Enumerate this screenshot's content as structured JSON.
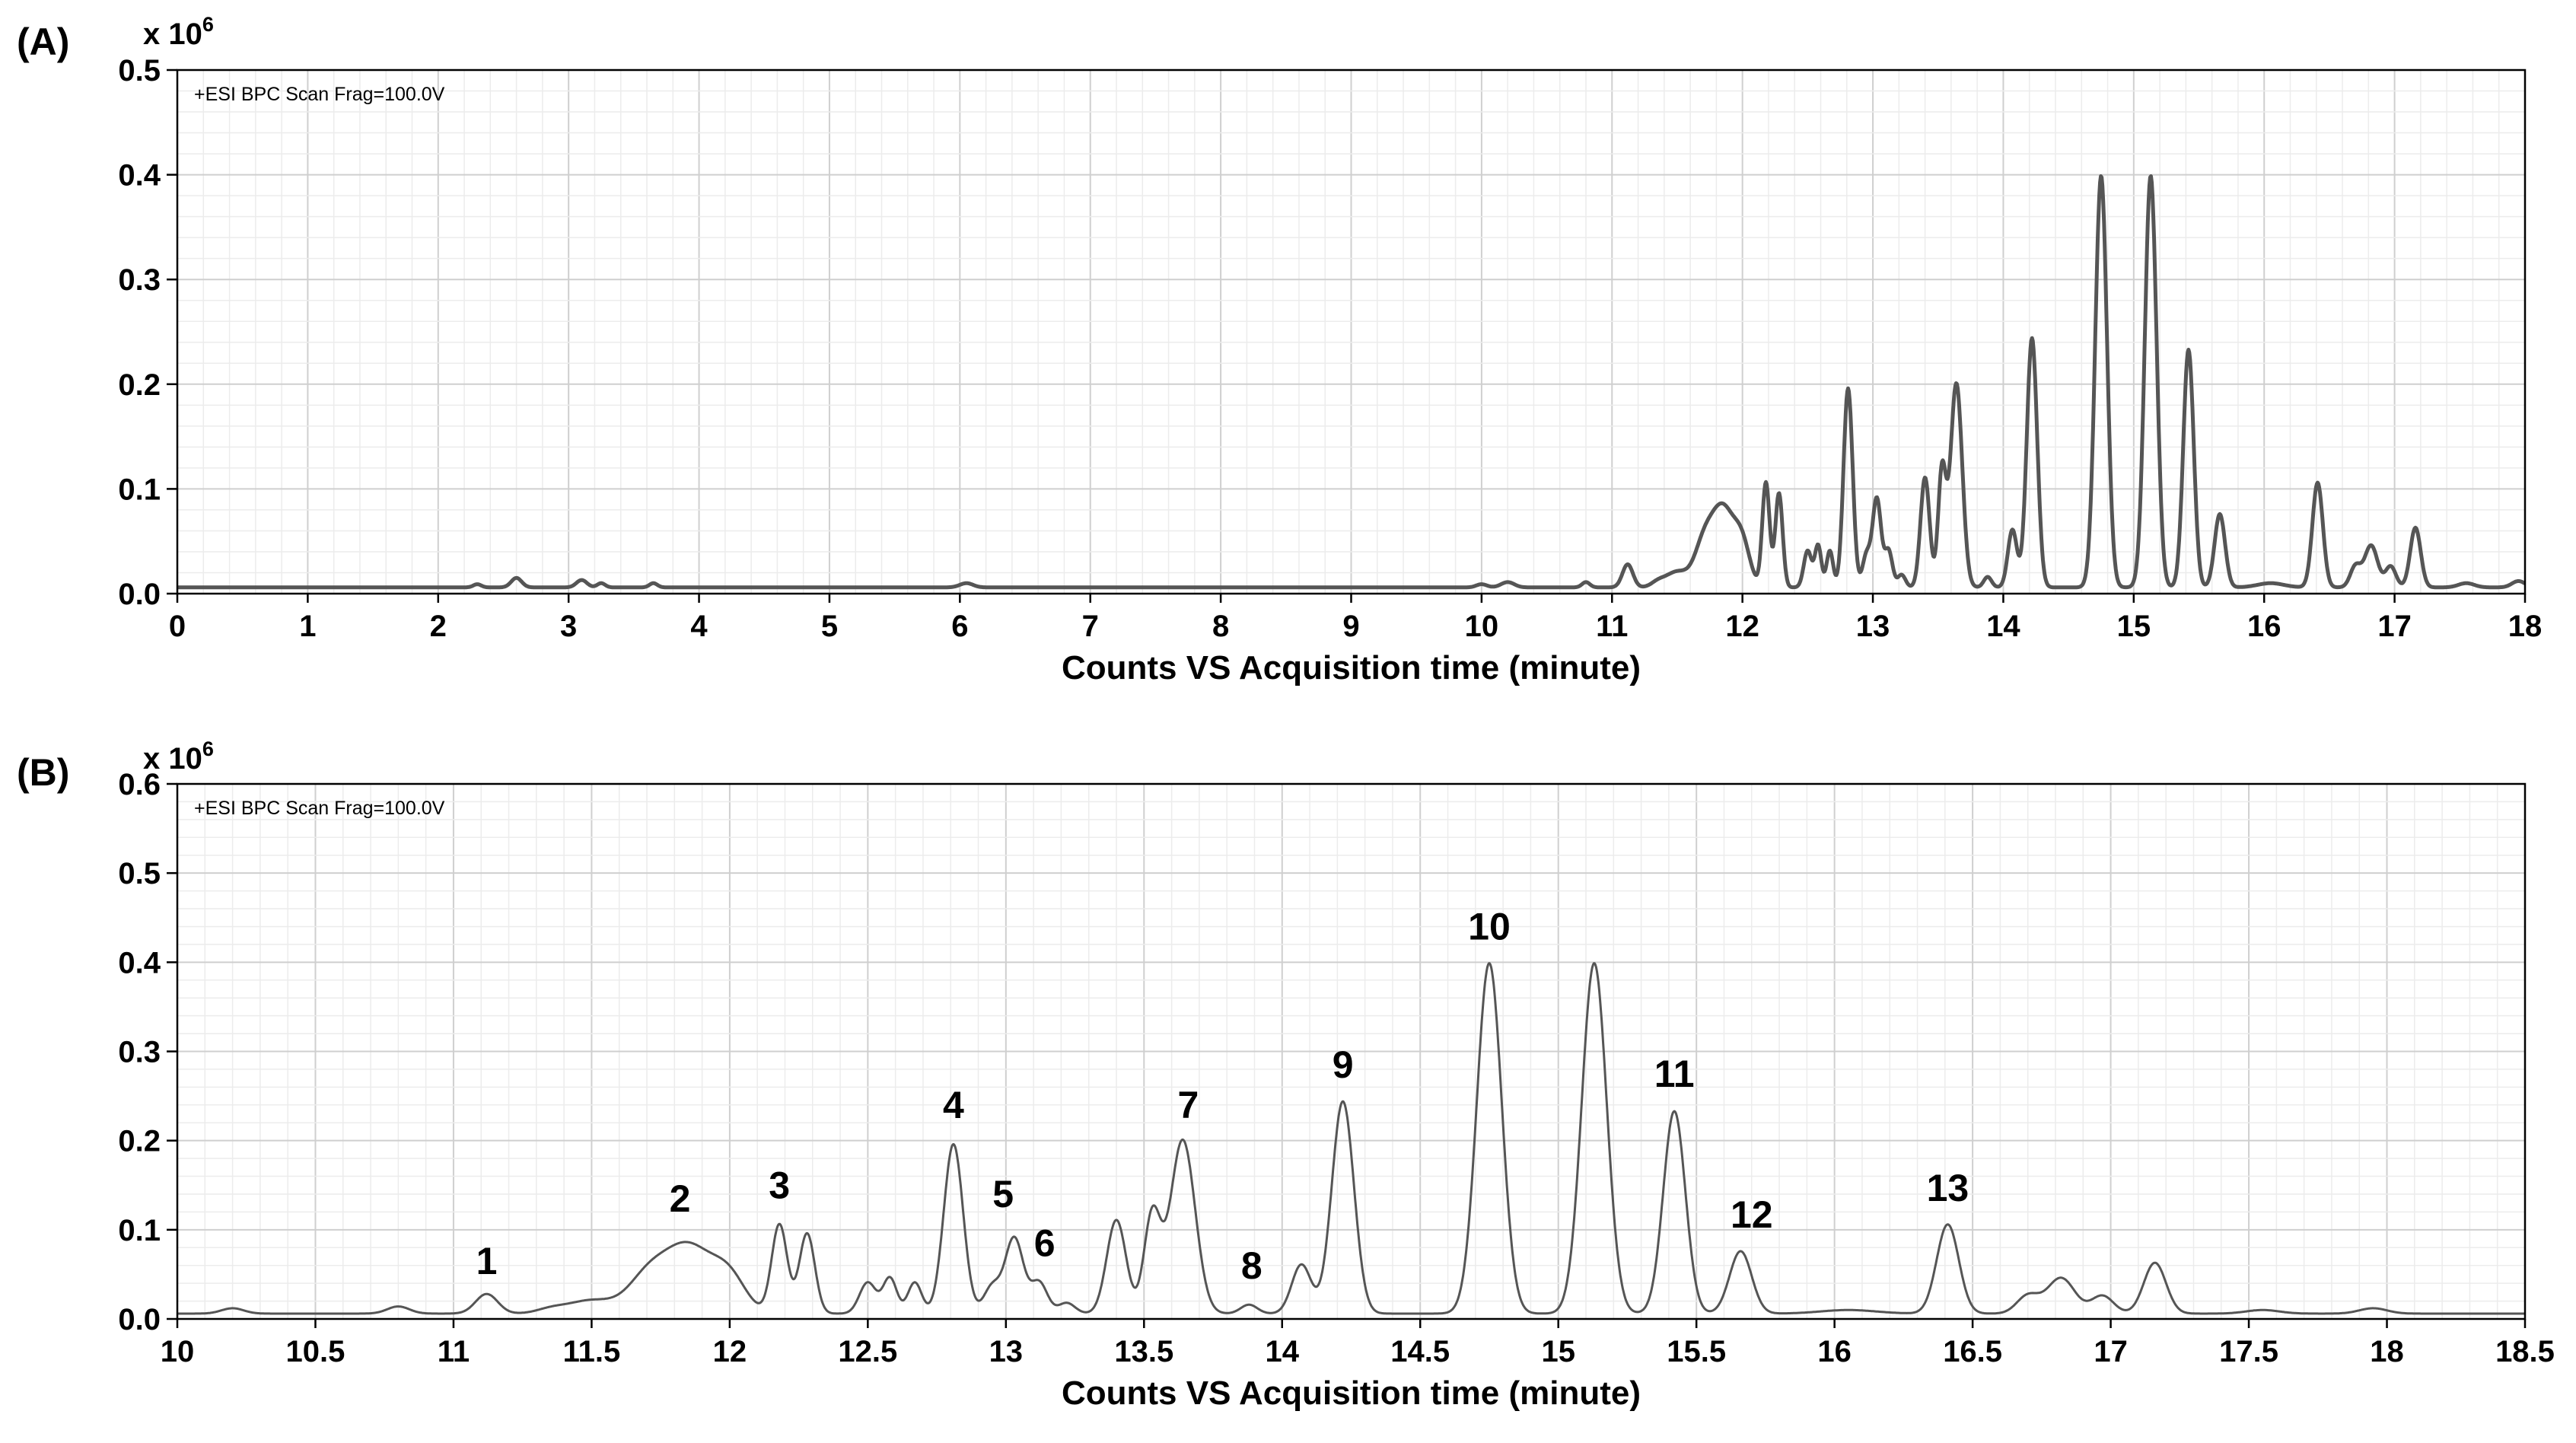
{
  "chart_data": [
    {
      "type": "line",
      "panel_label": "(A)",
      "multiplier": "x 10",
      "multiplier_exp": "6",
      "annotation": "+ESI BPC Scan Frag=100.0V",
      "xlabel": "Counts VS Acquisition time (minute)",
      "xlim": [
        0,
        18
      ],
      "ylim": [
        0,
        0.5
      ],
      "x_ticks": [
        "0",
        "1",
        "2",
        "3",
        "4",
        "5",
        "6",
        "7",
        "8",
        "9",
        "10",
        "11",
        "12",
        "13",
        "14",
        "15",
        "16",
        "17",
        "18"
      ],
      "y_ticks": [
        "0.0",
        "0.1",
        "0.2",
        "0.3",
        "0.4",
        "0.5"
      ],
      "grid": true,
      "line_color": "#555555",
      "baseline": 0.006,
      "peaks": [
        [
          2.3,
          0.003,
          0.03
        ],
        [
          2.6,
          0.009,
          0.04
        ],
        [
          3.1,
          0.007,
          0.04
        ],
        [
          3.25,
          0.004,
          0.03
        ],
        [
          3.65,
          0.004,
          0.03
        ],
        [
          6.05,
          0.004,
          0.05
        ],
        [
          10.0,
          0.003,
          0.04
        ],
        [
          10.2,
          0.005,
          0.05
        ],
        [
          10.8,
          0.005,
          0.03
        ],
        [
          11.12,
          0.022,
          0.04
        ],
        [
          11.35,
          0.004,
          0.05
        ],
        [
          11.5,
          0.015,
          0.09
        ],
        [
          11.7,
          0.035,
          0.07
        ],
        [
          11.85,
          0.075,
          0.09
        ],
        [
          12.0,
          0.035,
          0.06
        ],
        [
          12.18,
          0.1,
          0.028
        ],
        [
          12.28,
          0.09,
          0.028
        ],
        [
          12.5,
          0.035,
          0.03
        ],
        [
          12.58,
          0.04,
          0.025
        ],
        [
          12.67,
          0.035,
          0.025
        ],
        [
          12.81,
          0.19,
          0.035
        ],
        [
          12.95,
          0.03,
          0.03
        ],
        [
          13.03,
          0.085,
          0.033
        ],
        [
          13.12,
          0.035,
          0.03
        ],
        [
          13.22,
          0.012,
          0.03
        ],
        [
          13.4,
          0.105,
          0.035
        ],
        [
          13.53,
          0.11,
          0.03
        ],
        [
          13.64,
          0.195,
          0.045
        ],
        [
          13.88,
          0.01,
          0.03
        ],
        [
          14.07,
          0.055,
          0.035
        ],
        [
          14.22,
          0.238,
          0.04
        ],
        [
          14.75,
          0.393,
          0.045
        ],
        [
          15.13,
          0.393,
          0.045
        ],
        [
          15.42,
          0.227,
          0.04
        ],
        [
          15.66,
          0.07,
          0.04
        ],
        [
          16.05,
          0.004,
          0.1
        ],
        [
          16.41,
          0.1,
          0.04
        ],
        [
          16.7,
          0.02,
          0.04
        ],
        [
          16.82,
          0.04,
          0.05
        ],
        [
          16.97,
          0.02,
          0.04
        ],
        [
          17.16,
          0.057,
          0.04
        ],
        [
          17.55,
          0.004,
          0.06
        ],
        [
          17.95,
          0.006,
          0.05
        ]
      ]
    },
    {
      "type": "line",
      "panel_label": "(B)",
      "multiplier": "x 10",
      "multiplier_exp": "6",
      "annotation": "+ESI BPC Scan Frag=100.0V",
      "xlabel": "Counts VS Acquisition time (minute)",
      "xlim": [
        10,
        18.5
      ],
      "ylim": [
        0,
        0.6
      ],
      "x_ticks": [
        "10",
        "10.5",
        "11",
        "11.5",
        "12",
        "12.5",
        "13",
        "13.5",
        "14",
        "14.5",
        "15",
        "15.5",
        "16",
        "16.5",
        "17",
        "17.5",
        "18",
        "18.5"
      ],
      "y_ticks": [
        "0.0",
        "0.1",
        "0.2",
        "0.3",
        "0.4",
        "0.5",
        "0.6"
      ],
      "grid": true,
      "line_color": "#555555",
      "baseline": 0.006,
      "peaks": [
        [
          10.2,
          0.006,
          0.04
        ],
        [
          10.8,
          0.008,
          0.04
        ],
        [
          11.12,
          0.022,
          0.04
        ],
        [
          11.35,
          0.004,
          0.05
        ],
        [
          11.5,
          0.015,
          0.09
        ],
        [
          11.7,
          0.035,
          0.07
        ],
        [
          11.85,
          0.075,
          0.09
        ],
        [
          12.0,
          0.035,
          0.06
        ],
        [
          12.18,
          0.1,
          0.028
        ],
        [
          12.28,
          0.09,
          0.028
        ],
        [
          12.5,
          0.035,
          0.03
        ],
        [
          12.58,
          0.04,
          0.025
        ],
        [
          12.67,
          0.035,
          0.025
        ],
        [
          12.81,
          0.19,
          0.035
        ],
        [
          12.95,
          0.03,
          0.03
        ],
        [
          13.03,
          0.085,
          0.033
        ],
        [
          13.12,
          0.035,
          0.03
        ],
        [
          13.22,
          0.012,
          0.03
        ],
        [
          13.4,
          0.105,
          0.035
        ],
        [
          13.53,
          0.11,
          0.03
        ],
        [
          13.64,
          0.195,
          0.045
        ],
        [
          13.88,
          0.01,
          0.03
        ],
        [
          14.07,
          0.055,
          0.035
        ],
        [
          14.22,
          0.238,
          0.04
        ],
        [
          14.75,
          0.393,
          0.045
        ],
        [
          15.13,
          0.393,
          0.045
        ],
        [
          15.42,
          0.227,
          0.04
        ],
        [
          15.66,
          0.07,
          0.04
        ],
        [
          16.05,
          0.004,
          0.1
        ],
        [
          16.41,
          0.1,
          0.04
        ],
        [
          16.7,
          0.02,
          0.04
        ],
        [
          16.82,
          0.04,
          0.05
        ],
        [
          16.97,
          0.02,
          0.04
        ],
        [
          17.16,
          0.057,
          0.04
        ],
        [
          17.55,
          0.004,
          0.06
        ],
        [
          17.95,
          0.006,
          0.05
        ]
      ],
      "peak_labels": [
        {
          "label": "1",
          "x": 11.12,
          "y": 0.035
        },
        {
          "label": "2",
          "x": 11.82,
          "y": 0.105
        },
        {
          "label": "3",
          "x": 12.18,
          "y": 0.12
        },
        {
          "label": "4",
          "x": 12.81,
          "y": 0.21
        },
        {
          "label": "5",
          "x": 12.99,
          "y": 0.11
        },
        {
          "label": "6",
          "x": 13.14,
          "y": 0.055
        },
        {
          "label": "7",
          "x": 13.66,
          "y": 0.21
        },
        {
          "label": "8",
          "x": 13.89,
          "y": 0.03
        },
        {
          "label": "9",
          "x": 14.22,
          "y": 0.255
        },
        {
          "label": "10",
          "x": 14.75,
          "y": 0.41
        },
        {
          "label": "11",
          "x": 15.42,
          "y": 0.245
        },
        {
          "label": "12",
          "x": 15.7,
          "y": 0.087
        },
        {
          "label": "13",
          "x": 16.41,
          "y": 0.117
        }
      ]
    }
  ]
}
